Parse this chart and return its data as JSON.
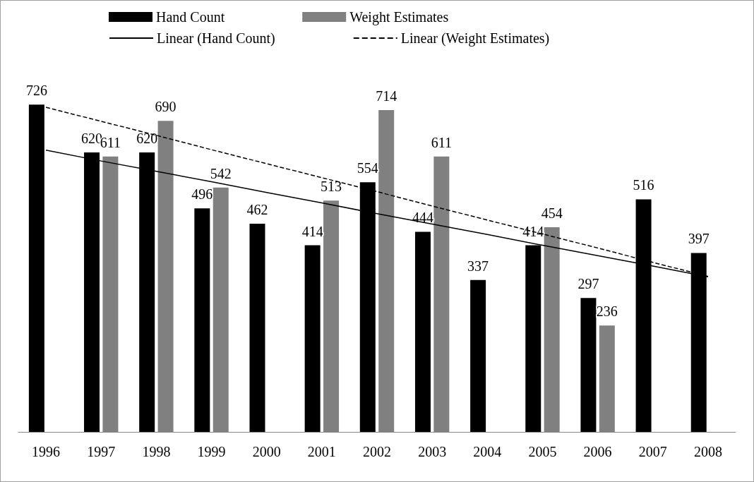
{
  "chart_data": {
    "type": "bar",
    "categories": [
      "1996",
      "1997",
      "1998",
      "1999",
      "2000",
      "2001",
      "2002",
      "2003",
      "2004",
      "2005",
      "2006",
      "2007",
      "2008"
    ],
    "series": [
      {
        "name": "Hand Count",
        "color": "#000000",
        "values": [
          726,
          620,
          620,
          496,
          462,
          414,
          554,
          444,
          337,
          414,
          297,
          516,
          397
        ],
        "value_labels": [
          "726",
          "620",
          "620",
          "496",
          "462",
          "414",
          "554",
          "444",
          "337",
          "414",
          "297",
          "516",
          "397"
        ]
      },
      {
        "name": "Weight Estimates",
        "color": "#808080",
        "values": [
          null,
          611,
          690,
          542,
          null,
          513,
          714,
          611,
          null,
          454,
          236,
          null,
          null
        ],
        "value_labels": [
          null,
          "611",
          "690",
          "542",
          null,
          "513",
          "714",
          "611",
          null,
          "454",
          "236",
          null,
          null
        ]
      },
      {
        "name": "Linear (Hand Count)",
        "type": "line",
        "color": "#000000",
        "line_style": "solid",
        "values": [
          625,
          601,
          578,
          555,
          531,
          508,
          484,
          461,
          438,
          414,
          391,
          368,
          344
        ]
      },
      {
        "name": "Linear (Weight Estimates)",
        "type": "line",
        "color": "#000000",
        "line_style": "dashed",
        "values": [
          720,
          689,
          658,
          626,
          595,
          564,
          533,
          501,
          470,
          439,
          408,
          376,
          345
        ]
      }
    ],
    "marker": "none",
    "legend": "top",
    "grid": false
  }
}
